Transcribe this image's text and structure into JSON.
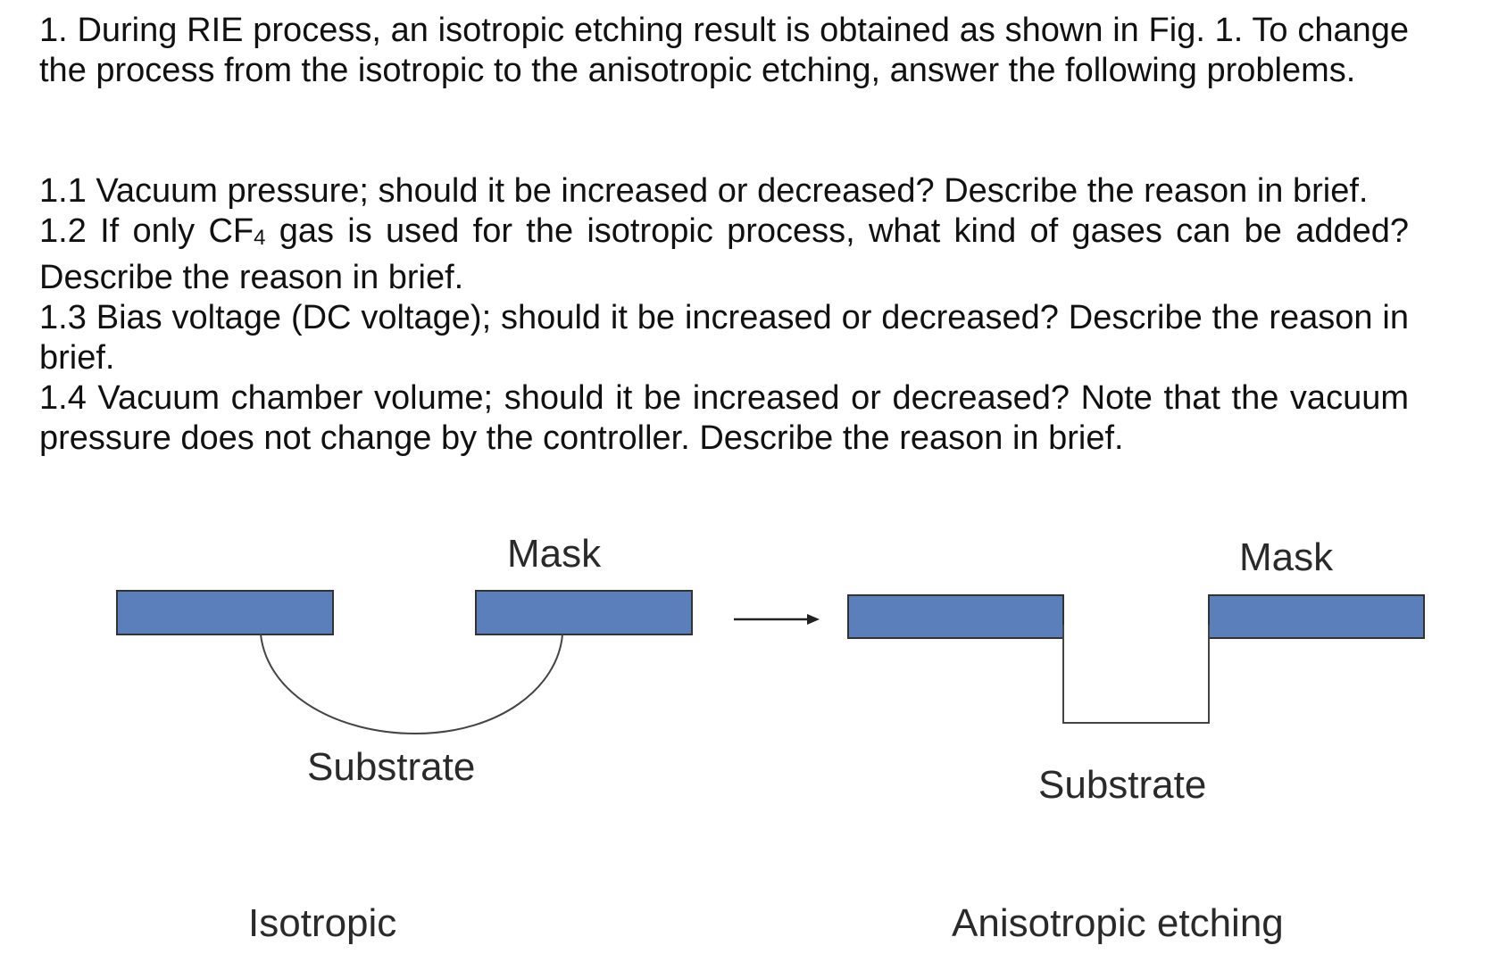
{
  "problem": {
    "intro_pre": "1. During RIE process, an isotropic etching result is obtained as shown in Fig. 1. To change the process from the isotropic to the anisotropic etching, answer the following problems.",
    "q1_1": "1.1 Vacuum pressure; should it be increased or decreased? Describe the reason in brief.",
    "q1_2_pre": "1.2 If only CF",
    "q1_2_sub": "4",
    "q1_2_post": " gas is used for the isotropic process, what kind of gases can be added? Describe the reason in brief.",
    "q1_3": "1.3 Bias voltage (DC voltage); should it be increased or decreased? Describe the reason in brief.",
    "q1_4": "1.4 Vacuum chamber volume; should it be increased or decreased? Note that the vacuum pressure does not change by the controller. Describe the reason in brief."
  },
  "figure": {
    "left": {
      "mask_label": "Mask",
      "substrate_label": "Substrate",
      "caption": "Isotropic"
    },
    "right": {
      "mask_label": "Mask",
      "substrate_label": "Substrate",
      "caption": "Anisotropic etching"
    },
    "colors": {
      "mask_fill": "#5b7fbb",
      "line": "#333333"
    }
  }
}
